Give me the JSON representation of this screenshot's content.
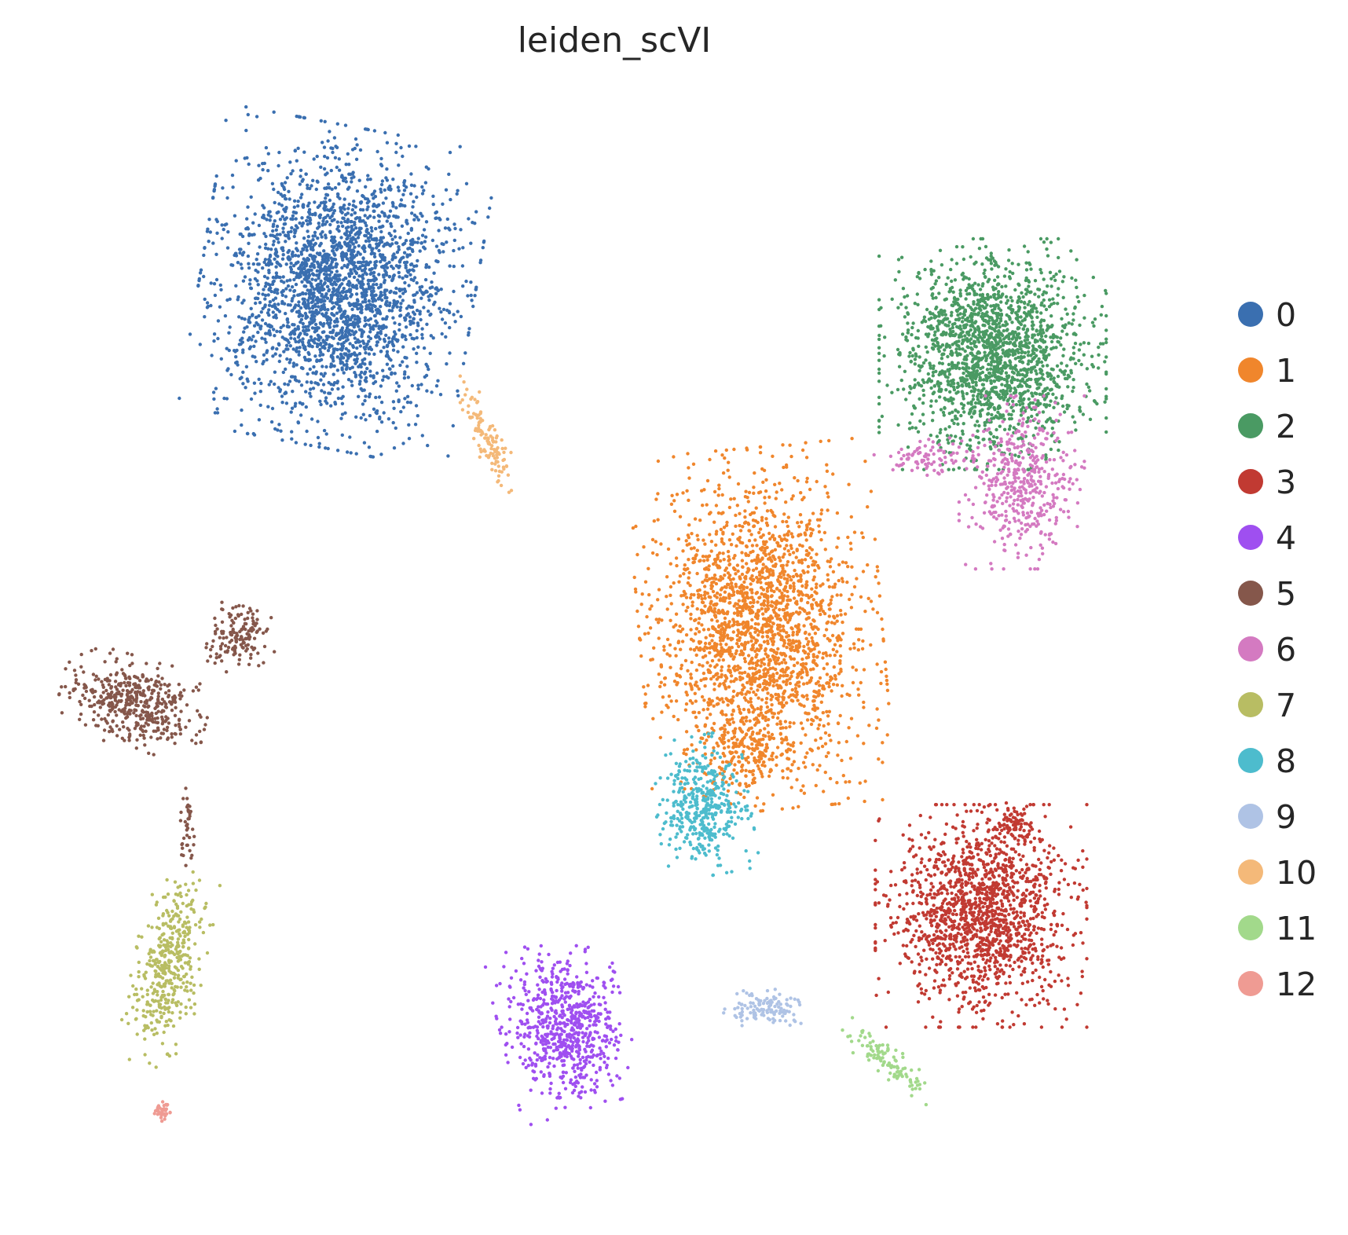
{
  "chart_data": {
    "type": "scatter",
    "title": "leiden_scVI",
    "xlabel": "",
    "ylabel": "",
    "grid": false,
    "axes_visible": false,
    "legend_position": "right",
    "series": [
      {
        "name": "0",
        "color": "#3a6fb0",
        "clusters": [
          {
            "center": [
              -6.5,
              7.6
            ],
            "spread": [
              1.75,
              1.95
            ],
            "count": 2600,
            "rotation": -10
          }
        ]
      },
      {
        "name": "1",
        "color": "#f0862c",
        "clusters": [
          {
            "center": [
              0.8,
              2.0
            ],
            "spread": [
              1.55,
              2.2
            ],
            "count": 2200,
            "rotation": 5
          },
          {
            "center": [
              0.5,
              0.0
            ],
            "spread": [
              0.6,
              0.6
            ],
            "count": 150,
            "rotation": 0
          }
        ]
      },
      {
        "name": "2",
        "color": "#4a9a63",
        "clusters": [
          {
            "center": [
              4.8,
              6.5
            ],
            "spread": [
              1.45,
              1.4
            ],
            "count": 1800,
            "rotation": 0
          }
        ]
      },
      {
        "name": "3",
        "color": "#c13a32",
        "clusters": [
          {
            "center": [
              4.6,
              -2.7
            ],
            "spread": [
              1.35,
              1.35
            ],
            "count": 1500,
            "rotation": 0
          },
          {
            "center": [
              5.2,
              -1.2
            ],
            "spread": [
              0.3,
              0.3
            ],
            "count": 80,
            "rotation": 0
          }
        ]
      },
      {
        "name": "4",
        "color": "#9f4ff0",
        "clusters": [
          {
            "center": [
              -2.6,
              -4.5
            ],
            "spread": [
              0.8,
              1.05
            ],
            "count": 700,
            "rotation": 15
          }
        ]
      },
      {
        "name": "5",
        "color": "#85574b",
        "clusters": [
          {
            "center": [
              -10.0,
              0.8
            ],
            "spread": [
              0.95,
              0.55
            ],
            "count": 450,
            "rotation": -15
          },
          {
            "center": [
              -8.2,
              1.9
            ],
            "spread": [
              0.5,
              0.45
            ],
            "count": 150,
            "rotation": 30
          },
          {
            "center": [
              -9.1,
              -1.2
            ],
            "spread": [
              0.1,
              0.5
            ],
            "count": 40,
            "rotation": 0
          }
        ]
      },
      {
        "name": "6",
        "color": "#d47ac1",
        "clusters": [
          {
            "center": [
              5.3,
              4.4
            ],
            "spread": [
              0.8,
              1.05
            ],
            "count": 450,
            "rotation": 0
          },
          {
            "center": [
              3.7,
              4.8
            ],
            "spread": [
              0.7,
              0.25
            ],
            "count": 80,
            "rotation": 0
          }
        ]
      },
      {
        "name": "7",
        "color": "#b8bd63",
        "clusters": [
          {
            "center": [
              -9.4,
              -3.5
            ],
            "spread": [
              0.45,
              1.25
            ],
            "count": 420,
            "rotation": -12
          }
        ]
      },
      {
        "name": "8",
        "color": "#4dbccd",
        "clusters": [
          {
            "center": [
              -0.2,
              -0.9
            ],
            "spread": [
              0.6,
              0.85
            ],
            "count": 420,
            "rotation": 10
          }
        ]
      },
      {
        "name": "9",
        "color": "#afc3e5",
        "clusters": [
          {
            "center": [
              0.9,
              -4.2
            ],
            "spread": [
              0.55,
              0.22
            ],
            "count": 120,
            "rotation": 0
          }
        ]
      },
      {
        "name": "10",
        "color": "#f4b979",
        "clusters": [
          {
            "center": [
              -3.9,
              5.1
            ],
            "spread": [
              0.2,
              0.85
            ],
            "count": 120,
            "rotation": 25
          }
        ]
      },
      {
        "name": "11",
        "color": "#a2d98b",
        "clusters": [
          {
            "center": [
              3.0,
              -5.1
            ],
            "spread": [
              0.2,
              0.7
            ],
            "count": 110,
            "rotation": 50
          }
        ]
      },
      {
        "name": "12",
        "color": "#ef9b93",
        "clusters": [
          {
            "center": [
              -9.5,
              -5.9
            ],
            "spread": [
              0.12,
              0.12
            ],
            "count": 35,
            "rotation": 0
          }
        ]
      }
    ],
    "xlim": [
      -11.5,
      8.0
    ],
    "ylim": [
      -7.0,
      10.5
    ]
  }
}
